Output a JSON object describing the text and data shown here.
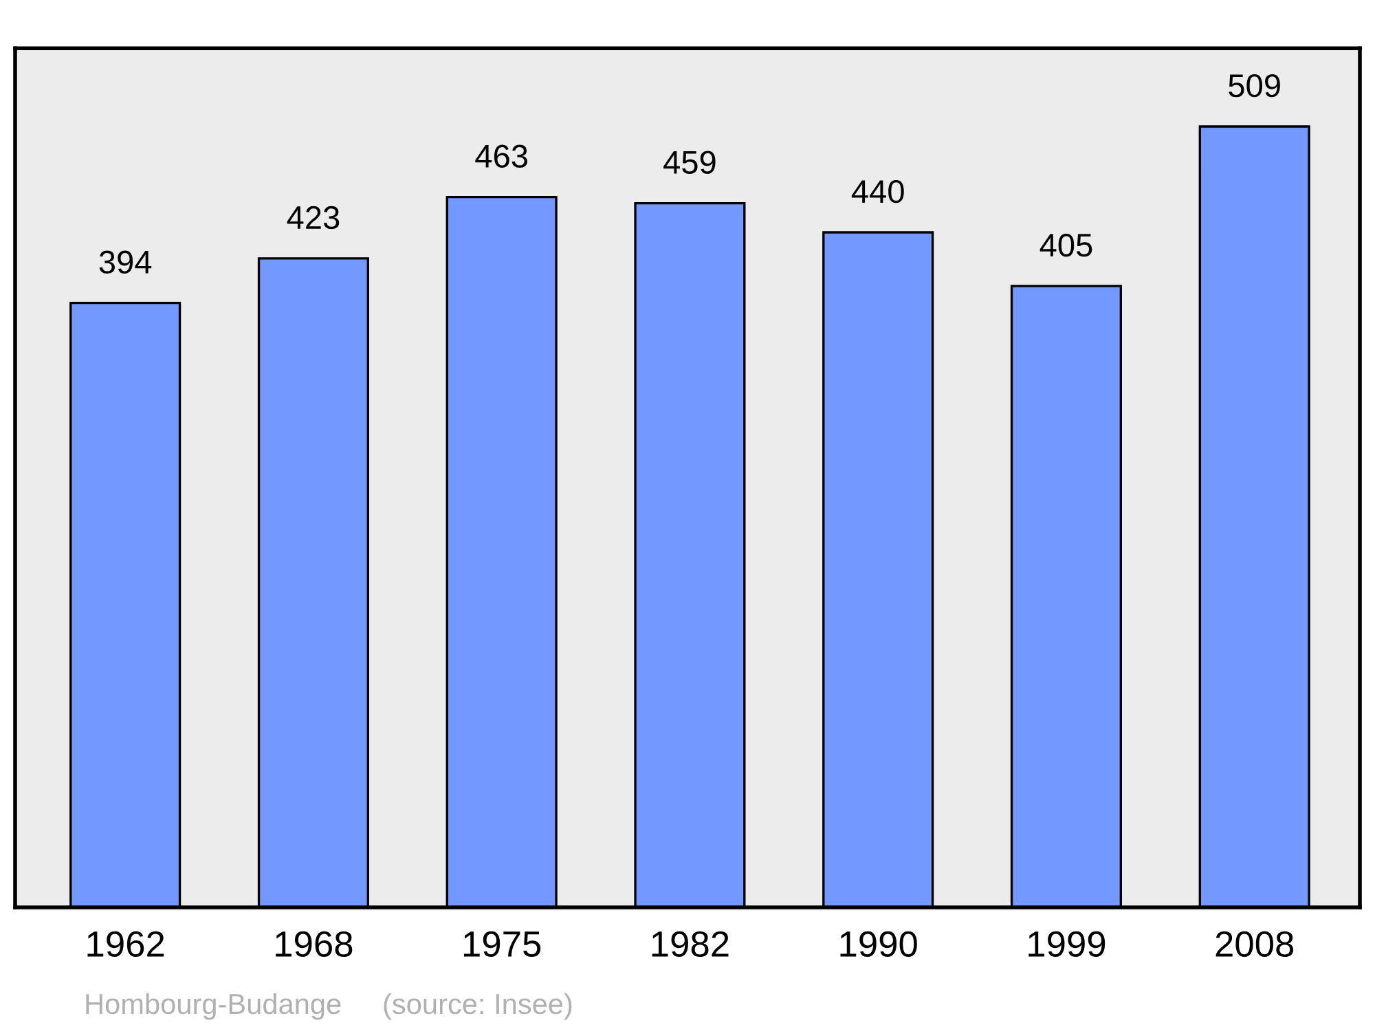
{
  "chart_data": {
    "type": "bar",
    "categories": [
      "1962",
      "1968",
      "1975",
      "1982",
      "1990",
      "1999",
      "2008"
    ],
    "values": [
      394,
      423,
      463,
      459,
      440,
      405,
      509
    ],
    "color": "#7399ff",
    "ylim": [
      0,
      560
    ],
    "data_labels": true,
    "grid": false,
    "legend": false,
    "annotations": [
      "Hombourg-Budange",
      "(source: Insee)"
    ]
  }
}
